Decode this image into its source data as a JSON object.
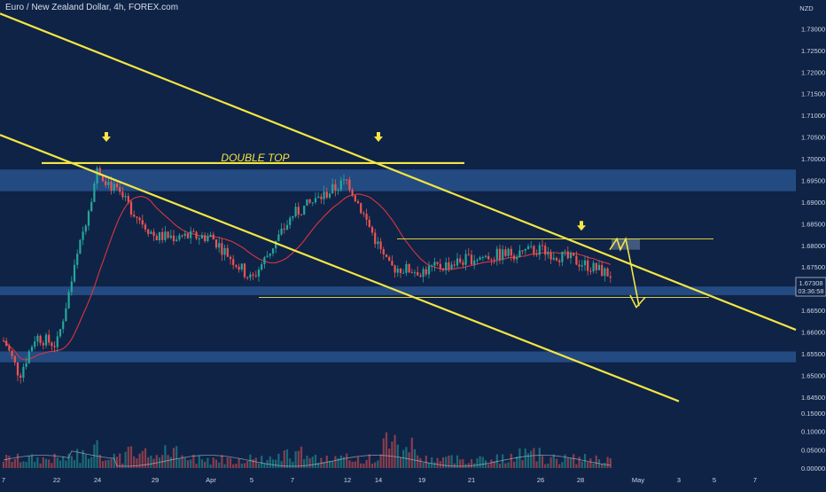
{
  "header": {
    "title": "Euro / New Zealand Dollar, 4h, FOREX.com"
  },
  "axis": {
    "currency": "NZD",
    "price_ticks": [
      "1.73000",
      "1.72500",
      "1.72000",
      "1.71500",
      "1.71000",
      "1.70500",
      "1.70000",
      "1.69500",
      "1.69000",
      "1.68500",
      "1.68000",
      "1.67500",
      "1.67000",
      "1.66500",
      "1.66000",
      "1.65500",
      "1.65000",
      "1.64500"
    ],
    "volume_ticks": [
      "0.15000",
      "0.10000",
      "0.05000",
      "0.00000"
    ],
    "date_ticks": [
      "7",
      "22",
      "24",
      "29",
      "Apr",
      "5",
      "7",
      "12",
      "14",
      "19",
      "21",
      "26",
      "28",
      "May",
      "3",
      "5",
      "7"
    ],
    "last_price": "1.67308",
    "countdown": "03:36:58"
  },
  "annotations": {
    "double_top": "DOUBLE TOP"
  },
  "colors": {
    "background": "#0f2347",
    "up": "#26a69a",
    "down": "#ef5350",
    "trendline": "#f5e642",
    "ma": "#d9363e",
    "zone": "#2b5a94"
  },
  "chart_data": {
    "type": "candlestick",
    "symbol": "EURNZD",
    "timeframe": "4h",
    "ylim": [
      1.6425,
      1.735
    ],
    "volume_ylim": [
      0,
      0.15
    ],
    "overlays": [
      {
        "name": "",
        "kind": "moving-average"
      },
      {
        "name": "",
        "kind": "trendline-descending-upper"
      },
      {
        "name": "",
        "kind": "trendline-descending-lower"
      },
      {
        "name": "",
        "kind": "double-top-resistance"
      }
    ],
    "resistance_zone": [
      1.6925,
      1.6975
    ],
    "support_zone": [
      1.6685,
      1.6705
    ],
    "lower_zone": [
      1.653,
      1.6555
    ],
    "range_high": 1.6815,
    "range_low": 1.668,
    "anchors": [
      {
        "date": "22",
        "close": 1.657
      },
      {
        "date": "24",
        "close": 1.6975
      },
      {
        "date": "29",
        "close": 1.682
      },
      {
        "date": "Apr",
        "close": 1.682
      },
      {
        "date": "5",
        "close": 1.672
      },
      {
        "date": "7",
        "close": 1.687
      },
      {
        "date": "12",
        "close": 1.695
      },
      {
        "date": "14",
        "close": 1.675
      },
      {
        "date": "19",
        "close": 1.674
      },
      {
        "date": "21",
        "close": 1.677
      },
      {
        "date": "26",
        "close": 1.679
      },
      {
        "date": "28",
        "close": 1.676
      },
      {
        "date": "last",
        "close": 1.67308
      }
    ]
  }
}
